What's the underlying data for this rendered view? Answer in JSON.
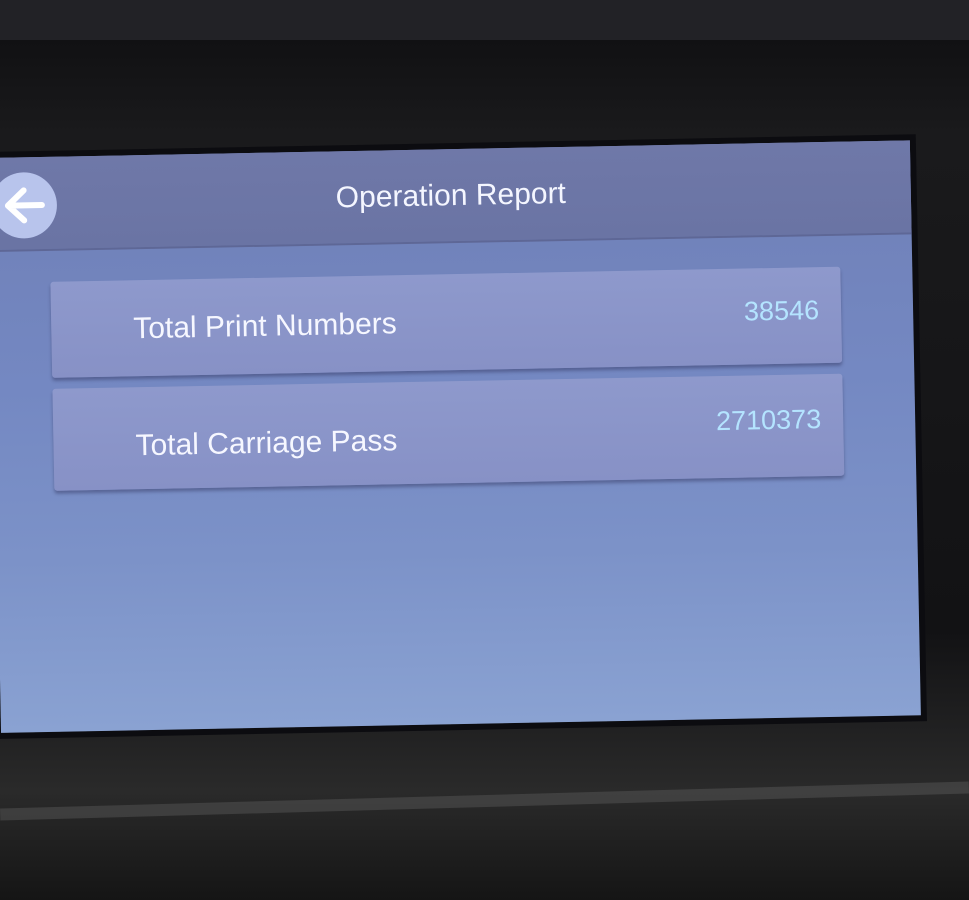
{
  "header": {
    "title": "Operation Report",
    "back_icon": "arrow-left-icon"
  },
  "report": {
    "rows": [
      {
        "label": "Total Print Numbers",
        "value": "38546"
      },
      {
        "label": "Total Carriage Pass",
        "value": "2710373"
      }
    ]
  },
  "colors": {
    "screen": "#7488c2",
    "row": "#8a95c8",
    "value_text": "#b4e4ff"
  }
}
